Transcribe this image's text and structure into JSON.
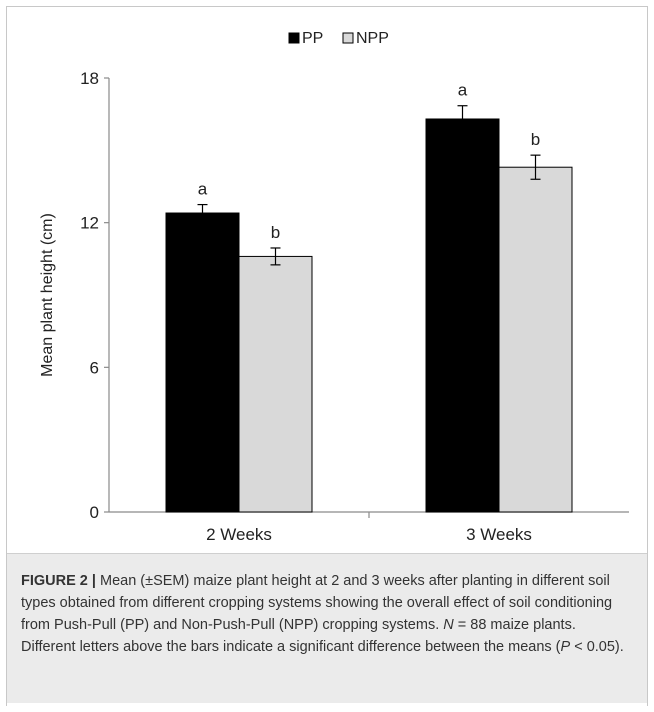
{
  "chart_data": {
    "type": "bar",
    "categories": [
      "2 Weeks",
      "3 Weeks"
    ],
    "series": [
      {
        "name": "PP",
        "values": [
          12.4,
          16.3
        ],
        "errors": [
          0.35,
          0.55
        ],
        "letters": [
          "a",
          "a"
        ],
        "color": "#000000"
      },
      {
        "name": "NPP",
        "values": [
          10.6,
          14.3
        ],
        "errors": [
          0.35,
          0.5
        ],
        "letters": [
          "b",
          "b"
        ],
        "color": "#d9d9d9"
      }
    ],
    "ylabel": "Mean plant height (cm)",
    "xlabel": "",
    "ylim": [
      0,
      18
    ],
    "yticks": [
      0,
      6,
      12,
      18
    ],
    "legend_position": "top-center",
    "grid": false
  },
  "caption": {
    "label": "FIGURE 2 |",
    "text_1": " Mean (±SEM) maize plant height at 2 and 3 weeks after planting in different soil types obtained from different cropping systems showing the overall effect of soil conditioning from Push-Pull (PP) and Non-Push-Pull (NPP) cropping systems. ",
    "n_symbol": "N",
    "text_2": " = 88 maize plants. Different letters above the bars indicate a significant difference between the means (",
    "p_symbol": "P",
    "text_3": " < 0.05)."
  }
}
